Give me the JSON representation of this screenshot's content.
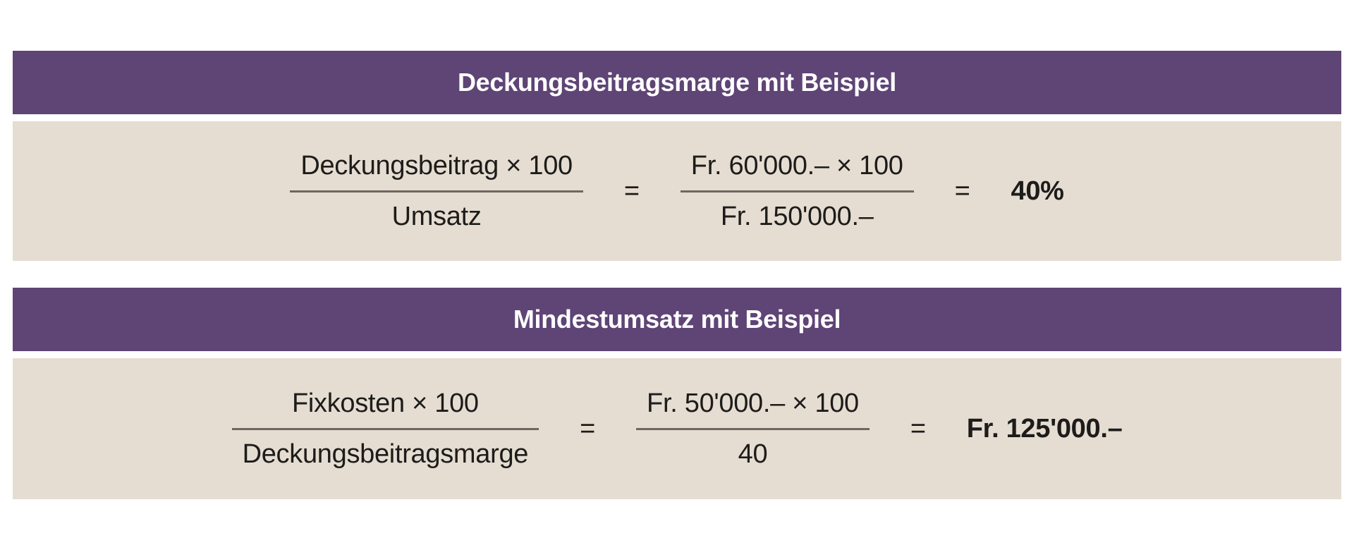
{
  "colors": {
    "header_background": "#5f4476",
    "header_text": "#ffffff",
    "body_background": "#e5ddd2",
    "formula_text": "#1d1c1a",
    "fraction_rule": "#6f675f",
    "page_background": "#ffffff"
  },
  "panels": [
    {
      "title": "Deckungsbeitragsmarge mit Beispiel",
      "formula": {
        "fraction1": {
          "numerator": "Deckungsbeitrag × 100",
          "denominator": "Umsatz"
        },
        "equals1": "=",
        "fraction2": {
          "numerator": "Fr. 60'000.– × 100",
          "denominator": "Fr. 150'000.–"
        },
        "equals2": "=",
        "result": "40%"
      }
    },
    {
      "title": "Mindestumsatz mit Beispiel",
      "formula": {
        "fraction1": {
          "numerator": "Fixkosten × 100",
          "denominator": "Deckungsbeitragsmarge"
        },
        "equals1": "=",
        "fraction2": {
          "numerator": "Fr. 50'000.– × 100",
          "denominator": "40"
        },
        "equals2": "=",
        "result": "Fr. 125'000.–"
      }
    }
  ]
}
